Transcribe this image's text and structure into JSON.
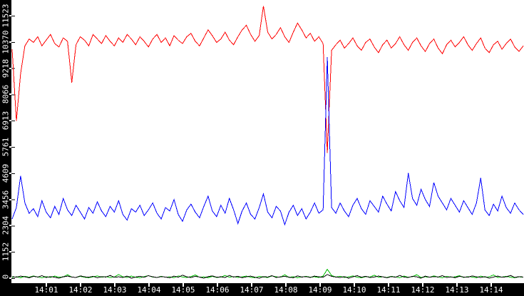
{
  "chart_data": {
    "type": "line",
    "title": "",
    "xlabel": "",
    "ylabel": "",
    "grid": false,
    "legend": false,
    "background_color": "#FFFFFF",
    "axis_band_color": "#000000",
    "tick_text_color": "#FFFFFF",
    "x_start": "14:00:00",
    "x_end": "14:15:00",
    "sample_interval_seconds": 7.5,
    "ylim": [
      0,
      11523
    ],
    "yticks": [
      0,
      1152,
      2304,
      3456,
      4609,
      5761,
      6913,
      8066,
      9218,
      10370,
      11523
    ],
    "xticks": [
      "14:01",
      "14:02",
      "14:03",
      "14:04",
      "14:05",
      "14:06",
      "14:07",
      "14:08",
      "14:09",
      "14:10",
      "14:11",
      "14:12",
      "14:13",
      "14:14"
    ],
    "event_annotation": {
      "time": "14:09:15",
      "description_visible_in_pixels": "red series dips sharply while blue and green spike"
    },
    "series": [
      {
        "name": "red",
        "color": "#FF0000",
        "values": [
          10050,
          6900,
          8980,
          10200,
          10500,
          10350,
          10600,
          10200,
          10450,
          10700,
          10300,
          10150,
          10550,
          10400,
          8590,
          10250,
          10600,
          10450,
          10200,
          10700,
          10500,
          10300,
          10650,
          10400,
          10200,
          10550,
          10350,
          10700,
          10500,
          10250,
          10600,
          10400,
          10150,
          10500,
          10700,
          10350,
          10550,
          10200,
          10650,
          10450,
          10300,
          10600,
          10750,
          10400,
          10200,
          10550,
          10900,
          10650,
          10350,
          10500,
          10800,
          10450,
          10250,
          10600,
          10900,
          11100,
          10700,
          10400,
          10650,
          11950,
          10800,
          10500,
          10700,
          11000,
          10600,
          10350,
          10800,
          11200,
          10900,
          10550,
          10750,
          10400,
          10600,
          10300,
          5500,
          10000,
          10250,
          10450,
          10100,
          10300,
          10550,
          10200,
          10000,
          10350,
          10500,
          10150,
          9900,
          10250,
          10450,
          10100,
          10300,
          10600,
          10250,
          10000,
          10350,
          10550,
          10200,
          9950,
          10300,
          10500,
          10100,
          9850,
          10250,
          10450,
          10150,
          10350,
          10600,
          10250,
          10000,
          10300,
          10550,
          10100,
          9900,
          10250,
          10400,
          10050,
          10300,
          10500,
          10150,
          9950,
          10200
        ]
      },
      {
        "name": "blue",
        "color": "#0000FF",
        "values": [
          2600,
          3100,
          4490,
          3300,
          2850,
          3050,
          2700,
          3400,
          2900,
          2650,
          3150,
          2800,
          3500,
          3000,
          2750,
          3200,
          2900,
          2600,
          3100,
          2850,
          3350,
          2950,
          2700,
          3150,
          2900,
          3400,
          2800,
          2550,
          3050,
          2900,
          3200,
          2750,
          3000,
          3300,
          2850,
          2600,
          3100,
          2950,
          3450,
          2800,
          2500,
          3000,
          3250,
          2900,
          2650,
          3150,
          3600,
          2950,
          2700,
          3200,
          2850,
          3500,
          3000,
          2400,
          2950,
          3300,
          2800,
          2600,
          3100,
          3700,
          2900,
          2650,
          3150,
          2950,
          2350,
          2900,
          3200,
          2750,
          3050,
          2600,
          2900,
          3300,
          2850,
          3000,
          9700,
          3100,
          2850,
          3300,
          2950,
          2700,
          3200,
          3500,
          3050,
          2800,
          3400,
          3150,
          2900,
          3600,
          3250,
          2950,
          3800,
          3400,
          3100,
          4609,
          3500,
          3200,
          3900,
          3450,
          3150,
          4200,
          3600,
          3300,
          3000,
          3500,
          3200,
          2900,
          3400,
          3100,
          2800,
          3300,
          4400,
          3000,
          2750,
          3250,
          2950,
          3600,
          3100,
          2850,
          3300,
          3000,
          2800
        ]
      },
      {
        "name": "green",
        "color": "#00BB00",
        "values": [
          30,
          60,
          20,
          80,
          40,
          100,
          50,
          20,
          70,
          30,
          90,
          40,
          60,
          150,
          50,
          30,
          80,
          40,
          20,
          60,
          100,
          40,
          70,
          30,
          50,
          160,
          60,
          30,
          90,
          40,
          20,
          70,
          110,
          50,
          30,
          80,
          40,
          60,
          20,
          100,
          50,
          30,
          70,
          140,
          40,
          60,
          20,
          80,
          30,
          50,
          120,
          40,
          70,
          30,
          60,
          90,
          40,
          20,
          80,
          50,
          30,
          100,
          60,
          40,
          150,
          30,
          70,
          20,
          50,
          80,
          40,
          60,
          30,
          90,
          390,
          120,
          50,
          80,
          30,
          60,
          100,
          40,
          20,
          70,
          50,
          130,
          40,
          60,
          30,
          80,
          50,
          20,
          90,
          40,
          70,
          150,
          30,
          60,
          40,
          100,
          50,
          20,
          80,
          40,
          60,
          110,
          30,
          70,
          50,
          20,
          90,
          40,
          60,
          140,
          30,
          50,
          80,
          40,
          20,
          60,
          40
        ]
      },
      {
        "name": "black",
        "color": "#000000",
        "values": [
          70,
          40,
          90,
          60,
          20,
          80,
          50,
          110,
          30,
          70,
          40,
          0,
          60,
          90,
          50,
          30,
          100,
          60,
          40,
          80,
          20,
          70,
          50,
          120,
          40,
          60,
          30,
          90,
          0,
          50,
          80,
          40,
          110,
          60,
          30,
          70,
          50,
          20,
          90,
          40,
          130,
          60,
          30,
          80,
          50,
          0,
          70,
          100,
          40,
          60,
          30,
          120,
          50,
          80,
          20,
          60,
          90,
          40,
          0,
          70,
          50,
          110,
          30,
          60,
          80,
          40,
          20,
          100,
          50,
          70,
          30,
          90,
          60,
          40,
          160,
          80,
          50,
          30,
          70,
          0,
          60,
          110,
          40,
          80,
          30,
          50,
          90,
          60,
          20,
          70,
          40,
          120,
          50,
          30,
          80,
          60,
          0,
          90,
          40,
          70,
          50,
          110,
          30,
          60,
          20,
          80,
          50,
          40,
          100,
          60,
          30,
          70,
          0,
          50,
          90,
          40,
          60,
          120,
          30,
          70,
          50
        ]
      }
    ]
  }
}
